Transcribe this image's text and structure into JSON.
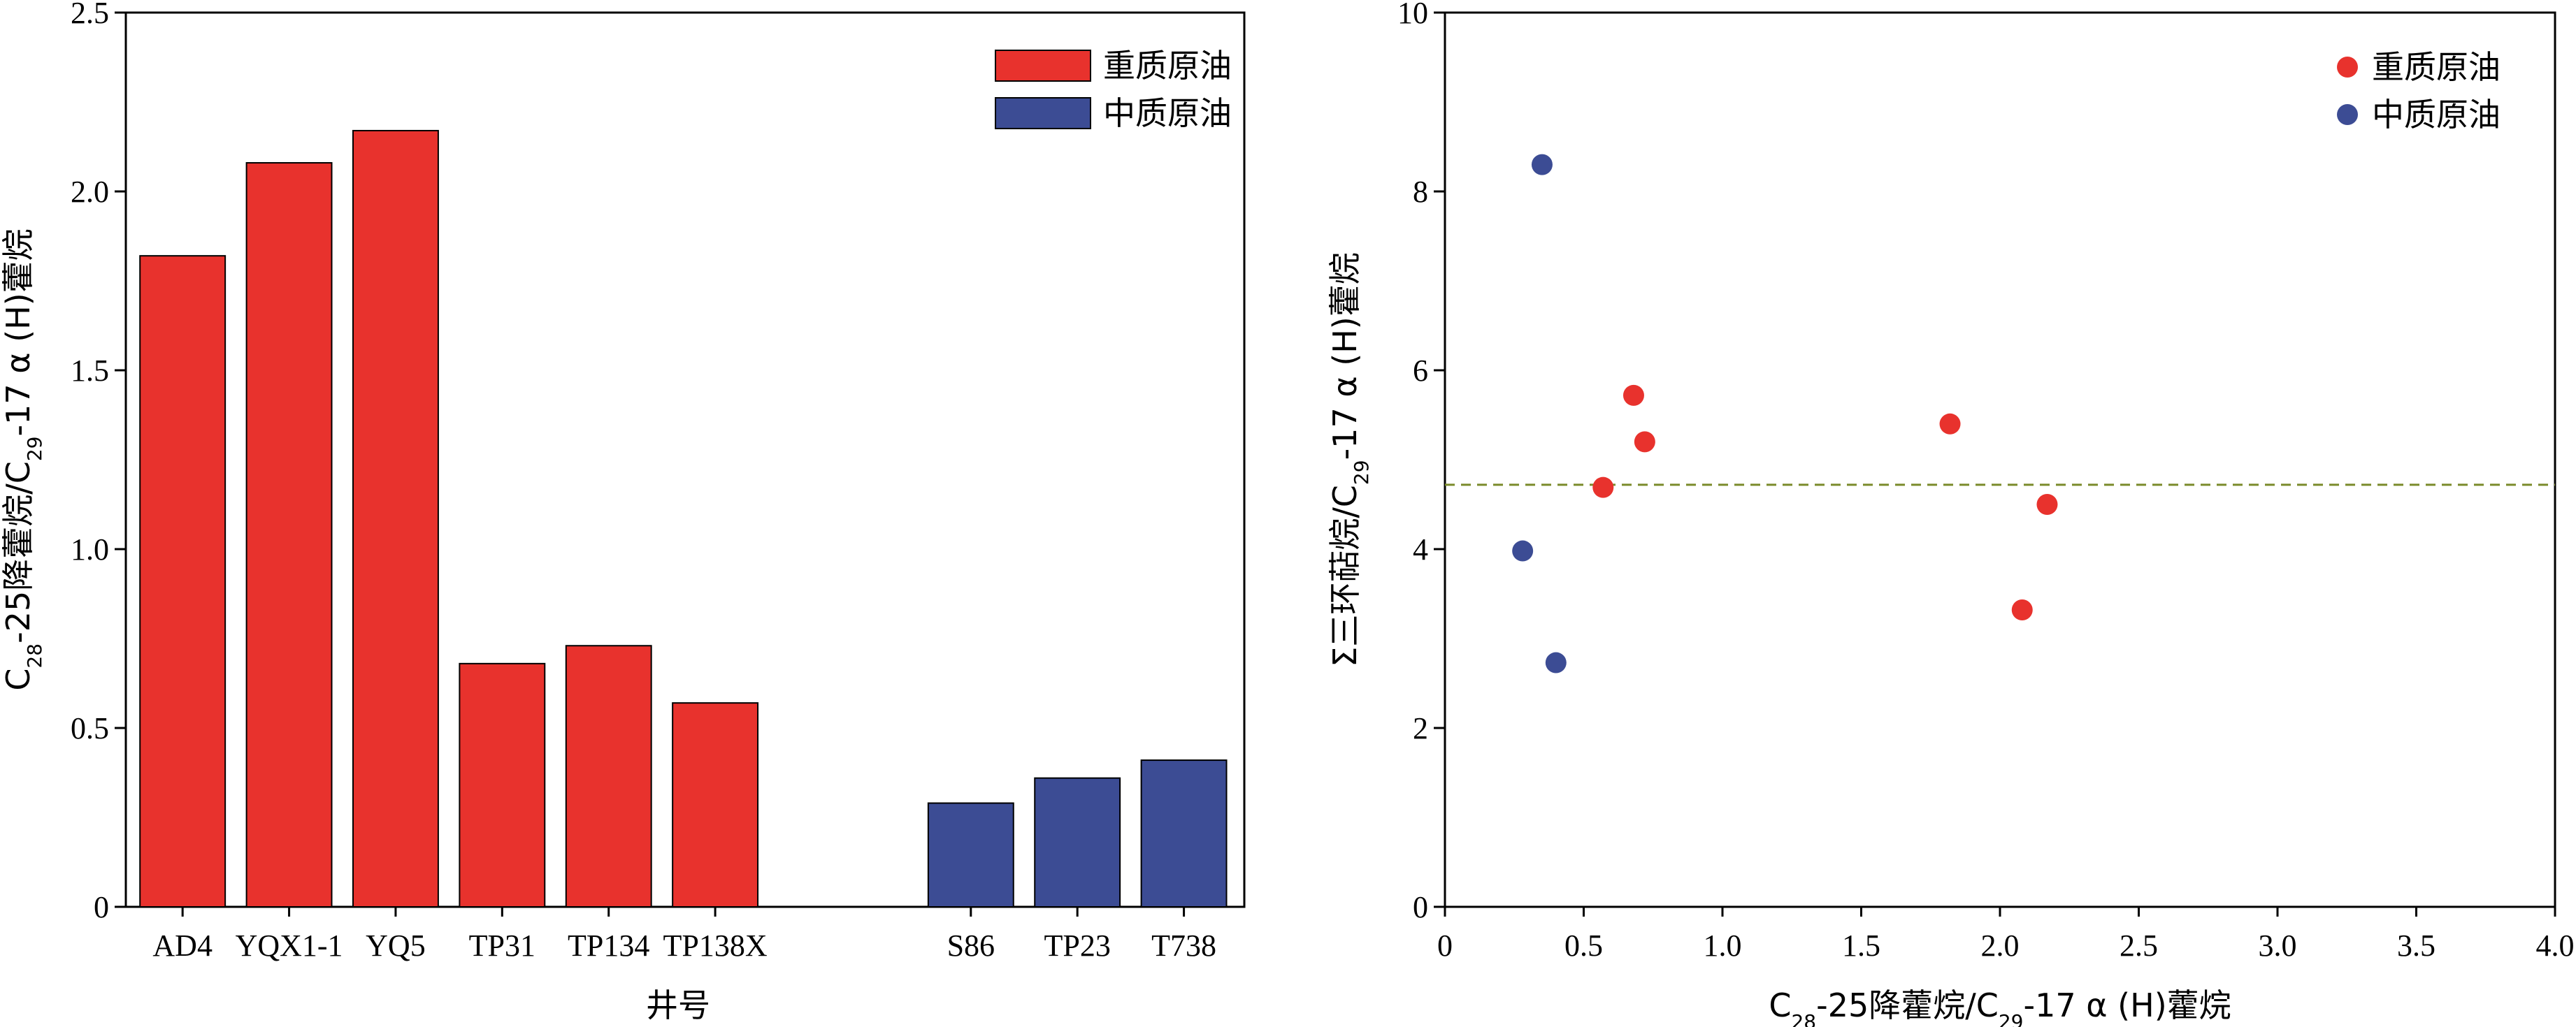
{
  "chart_data": [
    {
      "type": "bar",
      "categories": [
        "AD4",
        "YQX1-1",
        "YQ5",
        "TP31",
        "TP134",
        "TP138X",
        "S86",
        "TP23",
        "T738"
      ],
      "values": [
        1.82,
        2.08,
        2.17,
        0.68,
        0.73,
        0.57,
        0.29,
        0.36,
        0.41
      ],
      "groups": [
        "heavy",
        "heavy",
        "heavy",
        "heavy",
        "heavy",
        "heavy",
        "medium",
        "medium",
        "medium"
      ],
      "ylim": [
        0,
        2.5
      ],
      "yticks": [
        "0",
        "0.5",
        "1.0",
        "1.5",
        "2.0",
        "2.5"
      ],
      "xlabel": "井号",
      "ylabel": {
        "parts": [
          {
            "t": "C",
            "sub": false
          },
          {
            "t": "28",
            "sub": true
          },
          {
            "t": "-25降藿烷/C",
            "sub": false
          },
          {
            "t": "29",
            "sub": true
          },
          {
            "t": "-17 α (H)藿烷",
            "sub": false
          }
        ]
      },
      "legend_position": "top-right",
      "legend": [
        {
          "key": "heavy",
          "label": "重质原油",
          "color": "#e8322d"
        },
        {
          "key": "medium",
          "label": "中质原油",
          "color": "#3c4c94"
        }
      ]
    },
    {
      "type": "scatter",
      "series": [
        {
          "key": "heavy",
          "name": "重质原油",
          "color": "#e8322d",
          "points": [
            [
              0.57,
              4.69
            ],
            [
              0.68,
              5.72
            ],
            [
              0.72,
              5.2
            ],
            [
              1.82,
              5.4
            ],
            [
              2.08,
              3.32
            ],
            [
              2.17,
              4.5
            ]
          ]
        },
        {
          "key": "medium",
          "name": "中质原油",
          "color": "#3c4c94",
          "points": [
            [
              0.35,
              8.3
            ],
            [
              0.28,
              3.98
            ],
            [
              0.4,
              2.73
            ]
          ]
        }
      ],
      "reference_line": {
        "y": 4.72,
        "style": "dashed",
        "color": "#7a8a2a"
      },
      "xlim": [
        0,
        4.0
      ],
      "ylim": [
        0,
        10
      ],
      "xticks": [
        "0",
        "0.5",
        "1.0",
        "1.5",
        "2.0",
        "2.5",
        "3.0",
        "3.5",
        "4.0"
      ],
      "yticks": [
        "0",
        "2",
        "4",
        "6",
        "8",
        "10"
      ],
      "xlabel": {
        "parts": [
          {
            "t": "C",
            "sub": false
          },
          {
            "t": "28",
            "sub": true
          },
          {
            "t": "-25降藿烷/C",
            "sub": false
          },
          {
            "t": "29",
            "sub": true
          },
          {
            "t": "-17 α (H)藿烷",
            "sub": false
          }
        ]
      },
      "ylabel": {
        "parts": [
          {
            "t": "Σ三环萜烷/C",
            "sub": false
          },
          {
            "t": "29",
            "sub": true
          },
          {
            "t": "-17 α (H)藿烷",
            "sub": false
          }
        ]
      },
      "legend_position": "top-right",
      "grid": false
    }
  ]
}
